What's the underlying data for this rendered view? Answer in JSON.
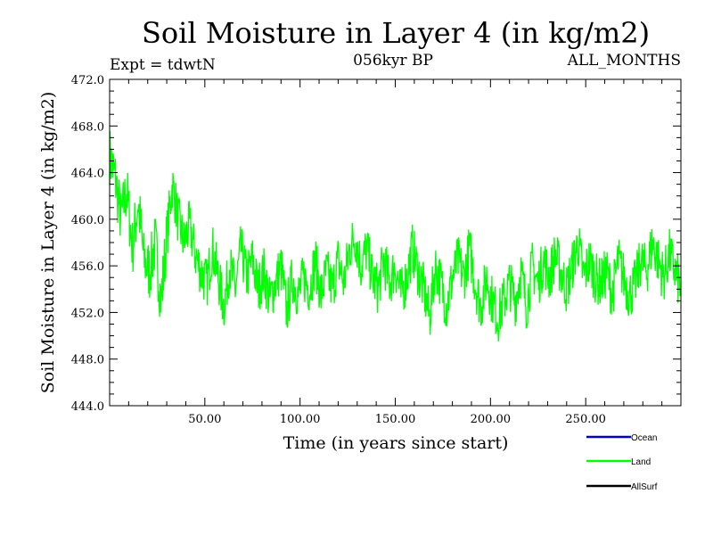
{
  "chart_data": {
    "type": "line",
    "title": "Soil Moisture in Layer 4 (in kg/m2)",
    "subtitle_left": "Expt = tdwtN",
    "subtitle_center": "056kyr BP",
    "subtitle_right": "ALL_MONTHS",
    "xlabel": "Time (in years since start)",
    "ylabel": "Soil Moisture in Layer 4 (in kg/m2)",
    "xlim": [
      0,
      300
    ],
    "ylim": [
      444,
      472
    ],
    "x_ticks": [
      {
        "value": 50,
        "label": "50.00"
      },
      {
        "value": 100,
        "label": "100.00"
      },
      {
        "value": 150,
        "label": "150.00"
      },
      {
        "value": 200,
        "label": "200.00"
      },
      {
        "value": 250,
        "label": "250.00"
      }
    ],
    "y_ticks": [
      {
        "value": 444,
        "label": "444.0"
      },
      {
        "value": 448,
        "label": "448.0"
      },
      {
        "value": 452,
        "label": "452.0"
      },
      {
        "value": 456,
        "label": "456.0"
      },
      {
        "value": 460,
        "label": "460.0"
      },
      {
        "value": 464,
        "label": "464.0"
      },
      {
        "value": 468,
        "label": "468.0"
      },
      {
        "value": 472,
        "label": "472.0"
      }
    ],
    "legend_position": "bottom-right",
    "series": [
      {
        "name": "Ocean",
        "color": "#0000cc",
        "values": []
      },
      {
        "name": "Land",
        "color": "#00ff00",
        "x": [
          0,
          3,
          6,
          9,
          12,
          15,
          18,
          21,
          24,
          27,
          30,
          33,
          36,
          39,
          42,
          45,
          48,
          51,
          54,
          57,
          60,
          63,
          66,
          69,
          72,
          75,
          78,
          81,
          84,
          87,
          90,
          93,
          96,
          99,
          102,
          105,
          108,
          111,
          114,
          117,
          120,
          123,
          126,
          129,
          132,
          135,
          138,
          141,
          144,
          147,
          150,
          153,
          156,
          159,
          162,
          165,
          168,
          171,
          174,
          177,
          180,
          183,
          186,
          189,
          192,
          195,
          198,
          201,
          204,
          207,
          210,
          213,
          216,
          219,
          222,
          225,
          228,
          231,
          234,
          237,
          240,
          243,
          246,
          249,
          252,
          255,
          258,
          261,
          264,
          267,
          270,
          273,
          276,
          279,
          282,
          285,
          288,
          291,
          294,
          297,
          300
        ],
        "values": [
          465.5,
          463.5,
          460.0,
          462.5,
          457.5,
          461.5,
          456.5,
          455.5,
          458.0,
          453.0,
          458.5,
          463.0,
          460.0,
          458.0,
          459.5,
          457.0,
          455.5,
          454.5,
          457.5,
          455.0,
          452.5,
          456.0,
          454.0,
          457.5,
          455.0,
          456.5,
          454.0,
          455.5,
          453.0,
          454.5,
          456.0,
          452.0,
          455.0,
          453.5,
          455.0,
          454.0,
          456.5,
          453.5,
          455.5,
          454.0,
          456.5,
          454.5,
          457.5,
          458.5,
          456.0,
          457.5,
          455.0,
          454.0,
          456.5,
          454.5,
          456.0,
          453.5,
          455.0,
          457.5,
          455.5,
          454.0,
          451.5,
          456.0,
          454.5,
          452.5,
          455.0,
          456.5,
          455.0,
          457.5,
          454.5,
          452.5,
          455.0,
          453.0,
          451.5,
          453.0,
          454.5,
          453.0,
          455.5,
          452.5,
          456.0,
          454.5,
          456.5,
          455.0,
          457.0,
          455.5,
          454.0,
          456.0,
          458.0,
          455.0,
          456.5,
          455.0,
          454.5,
          455.5,
          453.5,
          456.5,
          455.0,
          453.5,
          454.5,
          456.5,
          455.5,
          458.0,
          456.5,
          455.0,
          457.0,
          455.5,
          454.0
        ]
      },
      {
        "name": "AllSurf",
        "color": "#000000",
        "values": []
      }
    ]
  }
}
